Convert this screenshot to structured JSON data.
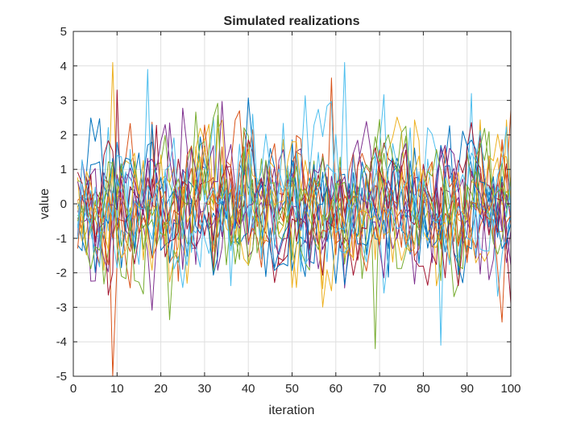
{
  "chart_data": {
    "type": "line",
    "title": "Simulated realizations",
    "xlabel": "iteration",
    "ylabel": "value",
    "xlim": [
      0,
      100
    ],
    "ylim": [
      -5,
      5
    ],
    "xticks": [
      0,
      10,
      20,
      30,
      40,
      50,
      60,
      70,
      80,
      90,
      100
    ],
    "yticks": [
      -5,
      -4,
      -3,
      -2,
      -1,
      0,
      1,
      2,
      3,
      4,
      5
    ],
    "grid": true,
    "legend": "none",
    "colors": [
      "#0072BD",
      "#D95319",
      "#EDB120",
      "#7E2F8E",
      "#77AC30",
      "#4DBEEE",
      "#A2142F"
    ],
    "series_count": 20,
    "points_per_series": 100,
    "x_start": 1,
    "x_end": 100,
    "distribution_note": "Values roughly within -2.5..2.5 with extremes near -5 and 4.1",
    "notable_points": [
      {
        "series": 1,
        "x": 9,
        "y": -5.0
      },
      {
        "series": 2,
        "x": 9,
        "y": 4.1
      },
      {
        "series": 5,
        "x": 62,
        "y": 4.1
      },
      {
        "series": 5,
        "x": 17,
        "y": 3.9
      },
      {
        "series": 4,
        "x": 69,
        "y": -4.2
      },
      {
        "series": 5,
        "x": 84,
        "y": -4.1
      },
      {
        "series": 1,
        "x": 59,
        "y": 3.65
      },
      {
        "series": 6,
        "x": 10,
        "y": 3.3
      },
      {
        "series": 5,
        "x": 91,
        "y": 3.2
      }
    ]
  }
}
